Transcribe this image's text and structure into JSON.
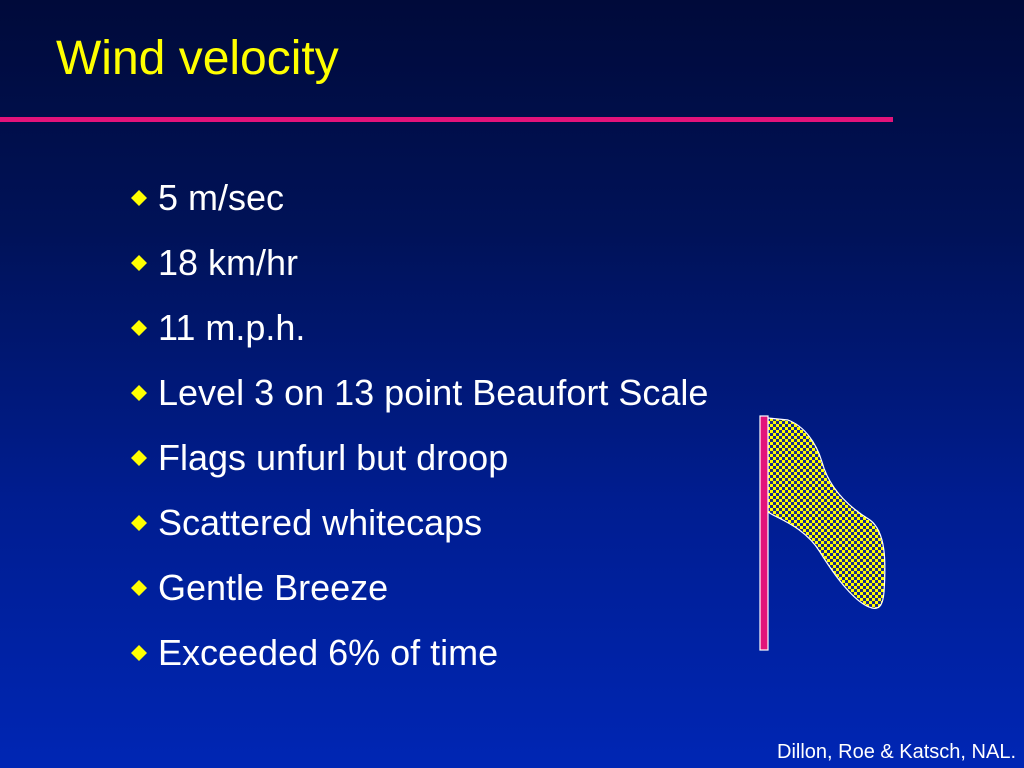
{
  "slide": {
    "title": "Wind velocity",
    "bullets": [
      "5 m/sec",
      "18 km/hr",
      "11 m.p.h.",
      "Level 3 on 13 point Beaufort Scale",
      "Flags unfurl but droop",
      "Scattered whitecaps",
      "Gentle Breeze",
      "Exceeded 6% of time"
    ],
    "credit": "Dillon, Roe & Katsch, NAL."
  },
  "colors": {
    "title": "#ffff00",
    "rule": "#e2137a",
    "bullet_diamond": "#ffff00",
    "body_text": "#ffffff",
    "flag_pole": "#e2137a",
    "flag_fill_dots": "#ffff00",
    "flag_fill_background": "#1a2a8a"
  },
  "icons": {
    "bullet": "diamond-icon",
    "illustration": "drooping-flag-icon"
  }
}
